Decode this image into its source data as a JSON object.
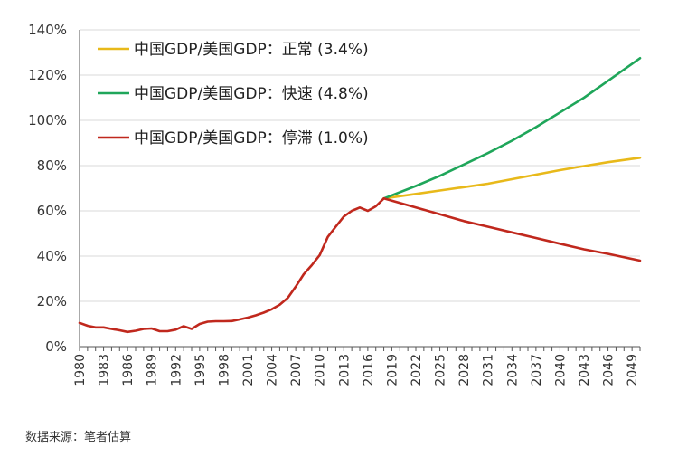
{
  "chart_data": {
    "type": "line",
    "ylim": [
      0,
      140
    ],
    "y_ticks": [
      "0%",
      "20%",
      "40%",
      "60%",
      "80%",
      "100%",
      "120%",
      "140%"
    ],
    "y_tick_values": [
      0,
      20,
      40,
      60,
      80,
      100,
      120,
      140
    ],
    "x_range": [
      1980,
      2050
    ],
    "x_ticks": [
      "1980",
      "1983",
      "1986",
      "1989",
      "1992",
      "1995",
      "1998",
      "2001",
      "2004",
      "2007",
      "2010",
      "2013",
      "2016",
      "2019",
      "2022",
      "2025",
      "2028",
      "2031",
      "2034",
      "2037",
      "2040",
      "2043",
      "2046",
      "2049"
    ],
    "grid": "horizontal",
    "legend_position": "top-left",
    "historical": {
      "color": "#c0281d",
      "x": [
        1980,
        1981,
        1982,
        1983,
        1984,
        1985,
        1986,
        1987,
        1988,
        1989,
        1990,
        1991,
        1992,
        1993,
        1994,
        1995,
        1996,
        1997,
        1998,
        1999,
        2000,
        2001,
        2002,
        2003,
        2004,
        2005,
        2006,
        2007,
        2008,
        2009,
        2010,
        2011,
        2012,
        2013,
        2014,
        2015,
        2016,
        2017,
        2018
      ],
      "y": [
        10.5,
        9.2,
        8.5,
        8.5,
        7.8,
        7.2,
        6.5,
        7.0,
        7.8,
        8.0,
        6.8,
        6.8,
        7.5,
        9.0,
        7.8,
        10.0,
        11.0,
        11.2,
        11.2,
        11.3,
        12.0,
        12.8,
        13.8,
        15.0,
        16.5,
        18.5,
        21.5,
        26.5,
        32.0,
        36.0,
        40.5,
        48.5,
        53.0,
        57.5,
        60.0,
        61.5,
        60.0,
        62.0,
        65.5
      ]
    },
    "series": [
      {
        "name": "中国GDP/美国GDP：正常 (3.4%)",
        "color": "#e8b91a",
        "x": [
          2018,
          2022,
          2025,
          2028,
          2031,
          2034,
          2037,
          2040,
          2043,
          2046,
          2050
        ],
        "y": [
          65.5,
          67.5,
          69.0,
          70.5,
          72.0,
          74.0,
          76.0,
          78.0,
          79.8,
          81.5,
          83.5
        ]
      },
      {
        "name": "中国GDP/美国GDP：快速 (4.8%)",
        "color": "#1fa65a",
        "x": [
          2018,
          2022,
          2025,
          2028,
          2031,
          2034,
          2037,
          2040,
          2043,
          2046,
          2050
        ],
        "y": [
          65.5,
          71.0,
          75.5,
          80.5,
          85.5,
          91.0,
          97.0,
          103.5,
          110.0,
          117.5,
          127.5
        ]
      },
      {
        "name": "中国GDP/美国GDP：停滞 (1.0%)",
        "color": "#c0281d",
        "x": [
          2018,
          2022,
          2025,
          2028,
          2031,
          2034,
          2037,
          2040,
          2043,
          2046,
          2050
        ],
        "y": [
          65.5,
          61.5,
          58.5,
          55.5,
          53.0,
          50.5,
          48.0,
          45.5,
          43.0,
          41.0,
          38.0
        ]
      }
    ]
  },
  "source": "数据来源：笔者估算"
}
